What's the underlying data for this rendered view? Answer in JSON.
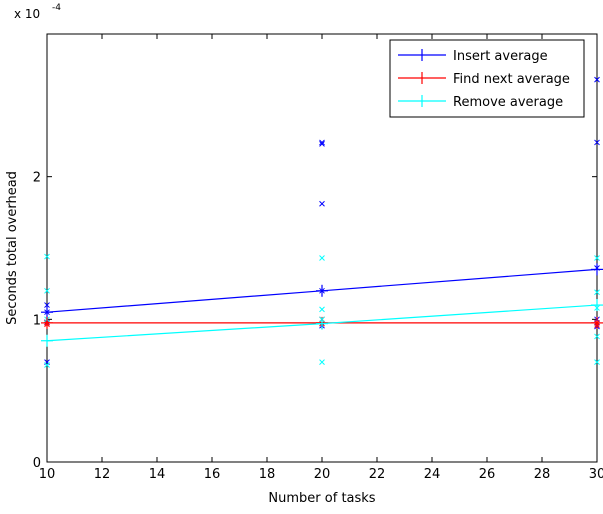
{
  "chart_data": {
    "type": "line",
    "title": "",
    "xlabel": "Number of tasks",
    "ylabel": "Seconds total overhead",
    "y_multiplier_base": "x 10",
    "y_multiplier_exp": "-4",
    "xlim": [
      10,
      30
    ],
    "ylim": [
      0,
      0.0003
    ],
    "x_ticks": [
      10,
      12,
      14,
      16,
      18,
      20,
      22,
      24,
      26,
      28,
      30
    ],
    "x_tick_labels": [
      "10",
      "12",
      "14",
      "16",
      "18",
      "20",
      "22",
      "24",
      "26",
      "28",
      "30"
    ],
    "y_ticks": [
      0,
      0.0001,
      0.0002
    ],
    "y_tick_labels": [
      "0",
      "1",
      "2"
    ],
    "grid": false,
    "legend_position": "top-right",
    "series": [
      {
        "name": "Insert average",
        "color": "#0000ff",
        "x": [
          10,
          20,
          30
        ],
        "y": [
          0.000105,
          0.00012,
          0.000135
        ]
      },
      {
        "name": "Find next average",
        "color": "#ff0000",
        "x": [
          10,
          20,
          30
        ],
        "y": [
          9.75e-05,
          9.75e-05,
          9.75e-05
        ]
      },
      {
        "name": "Remove average",
        "color": "#00ffff",
        "x": [
          10,
          20,
          30
        ],
        "y": [
          8.5e-05,
          9.7e-05,
          0.00011
        ]
      }
    ],
    "scatter_series": [
      {
        "color": "#0000ff",
        "points": [
          [
            10,
            0.00011
          ],
          [
            10,
            0.000105
          ],
          [
            10,
            9.8e-05
          ],
          [
            10,
            7e-05
          ],
          [
            20,
            0.000224
          ],
          [
            20,
            0.000223
          ],
          [
            20,
            0.000181
          ],
          [
            20,
            0.00012
          ],
          [
            20,
            9.55e-05
          ],
          [
            30,
            0.000268
          ],
          [
            30,
            0.000224
          ],
          [
            30,
            0.000136
          ],
          [
            30,
            0.0001
          ],
          [
            30,
            9.5e-05
          ]
        ]
      },
      {
        "color": "#ff0000",
        "points": [
          [
            10,
            9.75e-05
          ],
          [
            10,
            9.65e-05
          ],
          [
            20,
            0.0001
          ],
          [
            20,
            9.7e-05
          ],
          [
            30,
            9.75e-05
          ],
          [
            30,
            9.6e-05
          ]
        ]
      },
      {
        "color": "#00ffff",
        "points": [
          [
            10,
            0.000144
          ],
          [
            10,
            0.00012
          ],
          [
            10,
            0.0001
          ],
          [
            10,
            6.8e-05
          ],
          [
            20,
            0.000143
          ],
          [
            20,
            0.000107
          ],
          [
            20,
            0.0001
          ],
          [
            20,
            7e-05
          ],
          [
            30,
            0.000143
          ],
          [
            30,
            0.000119
          ],
          [
            30,
            0.000108
          ],
          [
            30,
            8.8e-05
          ],
          [
            30,
            7e-05
          ]
        ]
      }
    ]
  }
}
